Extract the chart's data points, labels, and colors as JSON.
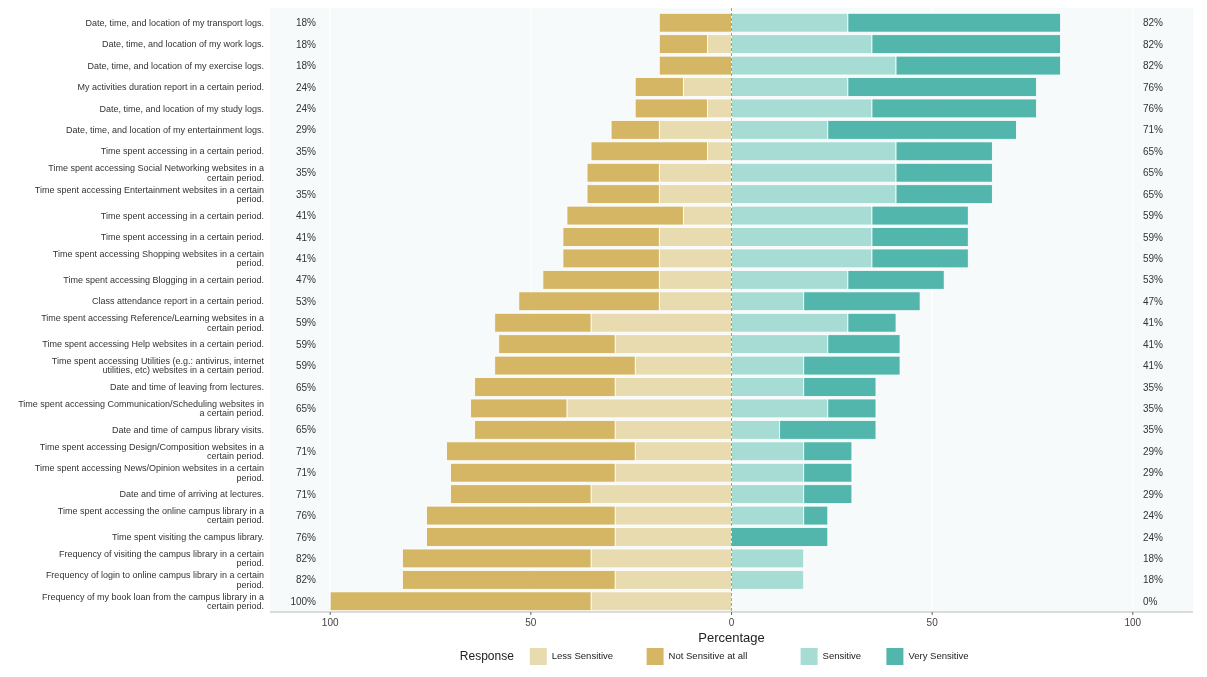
{
  "chart_data": {
    "type": "bar",
    "orientation": "horizontal",
    "stacked": true,
    "xlabel": "Percentage",
    "legend_title": "Response",
    "legend": "bottom",
    "grid": "x",
    "ref_lines": [
      {
        "axis": "x",
        "value": 0,
        "color": "#888888",
        "line_style": "dashed"
      }
    ],
    "xlim": [
      -115,
      115
    ],
    "xticks": [
      {
        "value": -100,
        "label": "100"
      },
      {
        "value": -50,
        "label": "50"
      },
      0,
      50,
      100
    ],
    "categories": [
      "Date, time, and location of my transport logs.",
      "Date, time, and location of my work logs.",
      "Date, time, and location of my exercise logs.",
      "My activities duration report in a certain period.",
      "Date, time, and location of my study logs.",
      "Date, time, and location of my entertainment logs.",
      "Time spent accessing in a certain period.",
      "Time spent accessing Social Networking websites in a certain period.",
      "Time spent accessing Entertainment websites in a certain period.",
      "Time spent accessing in a certain period.",
      "Time spent accessing in a certain period.",
      "Time spent accessing Shopping websites in a certain period.",
      "Time spent accessing Blogging in a certain period.",
      "Class attendance report in a certain period.",
      "Time spent accessing Reference/Learning websites in a certain period.",
      "Time spent accessing Help websites in a certain period.",
      "Time spent accessing Utilities (e.g.: antivirus, internet utilities, etc) websites in a certain period.",
      "Date and time of leaving from lectures.",
      "Time spent accessing Communication/Scheduling websites in a certain period.",
      "Date and time of campus library visits.",
      "Time spent accessing Design/Composition websites in a certain period.",
      "Time spent accessing News/Opinion websites in a certain period.",
      "Date and time of arriving at lectures.",
      "Time spent accessing the online campus library in a certain period.",
      "Time spent visiting the campus library.",
      "Frequency of visiting the campus library in a certain period.",
      "Frequency of login to online campus library in a certain period.",
      "Frequency of my book loan from the campus library in a certain period."
    ],
    "series": [
      {
        "name": "Less Sensitive",
        "color": "#e8dbb0",
        "values": [
          0,
          -6,
          0,
          -12,
          -6,
          -18,
          -6,
          -18,
          -18,
          -12,
          -18,
          -18,
          -18,
          -18,
          -35,
          -29,
          -24,
          -29,
          -41,
          -29,
          -24,
          -29,
          -35,
          -29,
          -29,
          -35,
          -29,
          -35
        ]
      },
      {
        "name": "Not Sensitive at all",
        "color": "#d4b665",
        "values": [
          -18,
          -12,
          -18,
          -12,
          -18,
          -12,
          -29,
          -18,
          -18,
          -29,
          -24,
          -24,
          -29,
          -35,
          -24,
          -29,
          -35,
          -35,
          -24,
          -35,
          -47,
          -41,
          -35,
          -47,
          -47,
          -47,
          -53,
          -65
        ]
      },
      {
        "name": "Sensitive",
        "color": "#a7dcd5",
        "values": [
          29,
          35,
          41,
          29,
          35,
          24,
          41,
          41,
          41,
          35,
          35,
          35,
          29,
          18,
          29,
          24,
          18,
          18,
          24,
          12,
          18,
          18,
          18,
          18,
          0,
          18,
          18,
          0
        ]
      },
      {
        "name": "Very Sensitive",
        "color": "#52b6ac",
        "values": [
          53,
          47,
          41,
          47,
          41,
          47,
          24,
          24,
          24,
          24,
          24,
          24,
          24,
          29,
          12,
          18,
          24,
          18,
          12,
          24,
          12,
          12,
          12,
          6,
          24,
          0,
          0,
          0
        ]
      }
    ],
    "totals": [
      [
        "18%",
        "82%"
      ],
      [
        "18%",
        "82%"
      ],
      [
        "18%",
        "82%"
      ],
      [
        "24%",
        "76%"
      ],
      [
        "24%",
        "76%"
      ],
      [
        "29%",
        "71%"
      ],
      [
        "35%",
        "65%"
      ],
      [
        "35%",
        "65%"
      ],
      [
        "35%",
        "65%"
      ],
      [
        "41%",
        "59%"
      ],
      [
        "41%",
        "59%"
      ],
      [
        "41%",
        "59%"
      ],
      [
        "47%",
        "53%"
      ],
      [
        "53%",
        "47%"
      ],
      [
        "59%",
        "41%"
      ],
      [
        "59%",
        "41%"
      ],
      [
        "59%",
        "41%"
      ],
      [
        "65%",
        "35%"
      ],
      [
        "65%",
        "35%"
      ],
      [
        "65%",
        "35%"
      ],
      [
        "71%",
        "29%"
      ],
      [
        "71%",
        "29%"
      ],
      [
        "71%",
        "29%"
      ],
      [
        "76%",
        "24%"
      ],
      [
        "76%",
        "24%"
      ],
      [
        "82%",
        "18%"
      ],
      [
        "82%",
        "18%"
      ],
      [
        "100%",
        "0%"
      ]
    ]
  }
}
